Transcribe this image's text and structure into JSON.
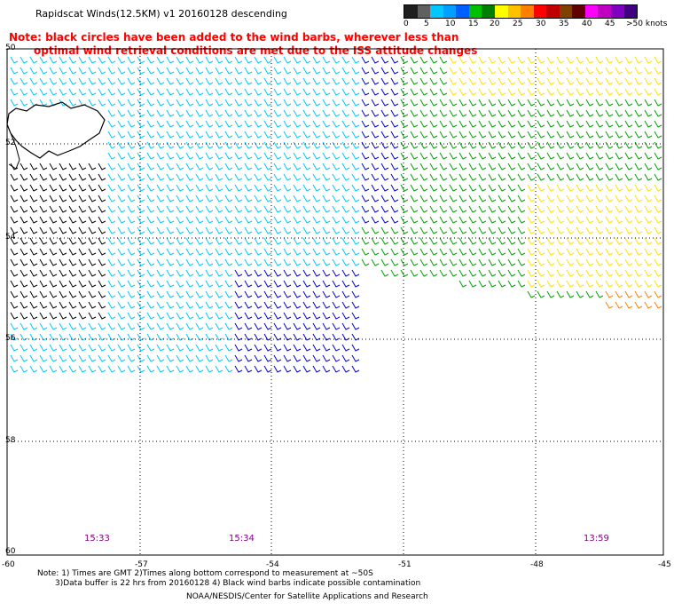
{
  "title": "Rapidscat Winds(12.5KM) v1 20160128 descending",
  "note_line1": "Note: black circles have been added to the wind barbs, wherever less than",
  "note_line2": "optimal wind retrieval conditions are met due to the ISS attitude changes",
  "colorbar": {
    "colors": [
      "#1e1e1e",
      "#606060",
      "#00c8ff",
      "#00a0ff",
      "#0060ff",
      "#00c000",
      "#008000",
      "#ffff00",
      "#ffc000",
      "#ff8000",
      "#ff0000",
      "#c00000",
      "#804000",
      "#600000",
      "#ff00ff",
      "#c000c0",
      "#8000c0",
      "#400080"
    ],
    "labels": [
      "0",
      "5",
      "10",
      "15",
      "20",
      "25",
      "30",
      "35",
      "40",
      "45",
      ">50 knots"
    ]
  },
  "axes": {
    "lon_labels": [
      "-60",
      "-57",
      "-54",
      "-51",
      "-48",
      "-45"
    ],
    "lat_labels": [
      "50",
      "52",
      "54",
      "56",
      "58",
      "60"
    ]
  },
  "times": [
    "15:33",
    "15:34",
    "13:59"
  ],
  "footer": {
    "line1": "Note: 1) Times are GMT 2)Times along bottom correspond to measurement at ~50S",
    "line2": "3)Data buffer is 22 hrs from 20160128 4) Black wind barbs indicate possible contamination",
    "line3": "NOAA/NESDIS/Center for Satellite Applications and Research"
  },
  "legend_colors": {
    "black": "#000000",
    "lightblue": "#00c8ff",
    "blue": "#0000cc",
    "green": "#00a000",
    "yellow": "#ffe000",
    "orange": "#ff8000"
  }
}
